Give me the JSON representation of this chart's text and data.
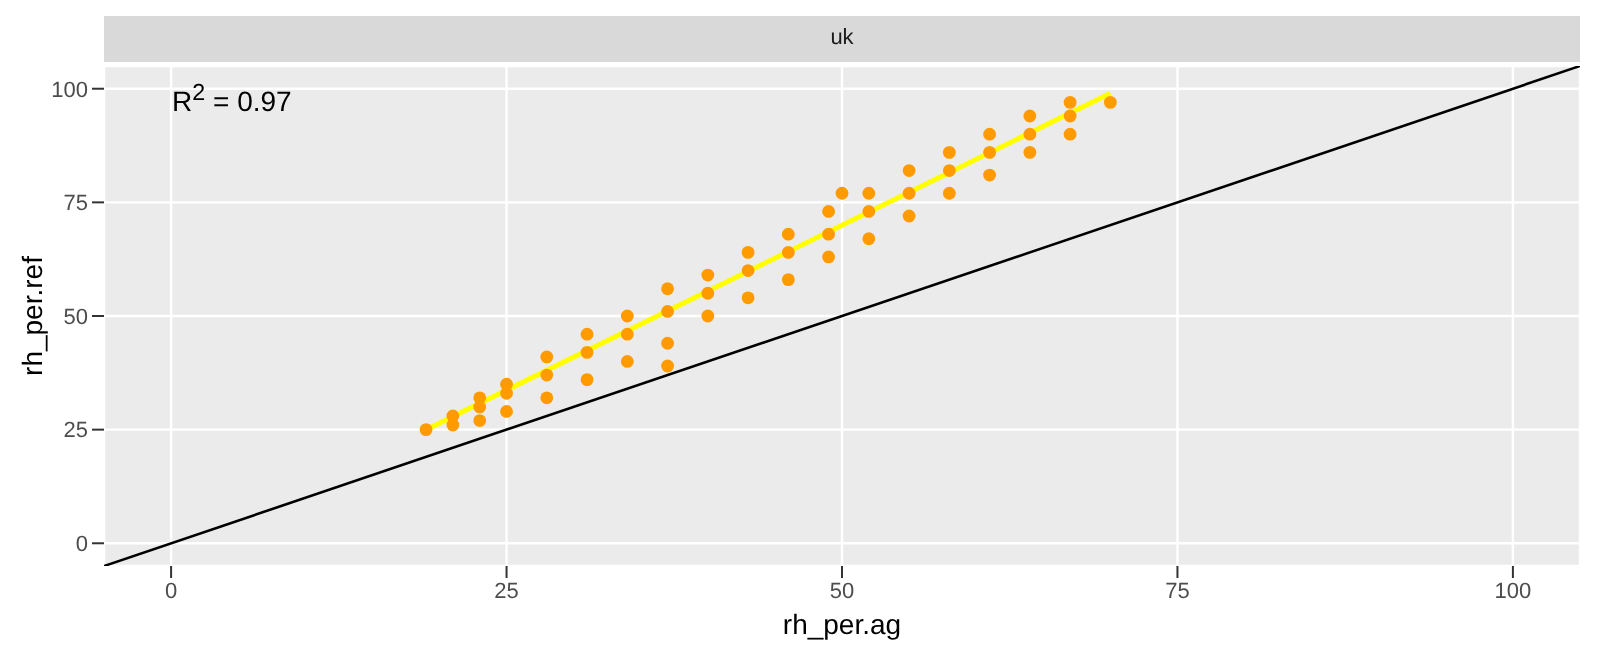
{
  "chart_data": {
    "type": "scatter",
    "title": "uk",
    "xlabel": "rh_per.ag",
    "ylabel": "rh_per.ref",
    "annotations": [
      "R$^{2}$ = 0.97"
    ],
    "xlim": [
      -5,
      105
    ],
    "ylim": [
      -5,
      105
    ],
    "xticks": [
      0,
      25,
      50,
      75,
      100
    ],
    "yticks": [
      0,
      25,
      50,
      75,
      100
    ],
    "grid": true,
    "series": [
      {
        "marker": "circle",
        "color": "#ff9a00",
        "x": [
          19,
          21,
          21,
          23,
          23,
          23,
          25,
          25,
          25,
          28,
          28,
          28,
          31,
          31,
          31,
          34,
          34,
          34,
          37,
          37,
          37,
          37,
          40,
          40,
          40,
          43,
          43,
          43,
          46,
          46,
          46,
          49,
          49,
          49,
          50,
          52,
          52,
          52,
          55,
          55,
          55,
          58,
          58,
          58,
          61,
          61,
          61,
          64,
          64,
          64,
          67,
          67,
          67,
          70
        ],
        "values": [
          25,
          26,
          28,
          27,
          30,
          32,
          29,
          33,
          35,
          32,
          37,
          41,
          36,
          42,
          46,
          40,
          46,
          50,
          39,
          44,
          51,
          56,
          50,
          55,
          59,
          54,
          60,
          64,
          58,
          64,
          68,
          63,
          68,
          73,
          77,
          67,
          73,
          77,
          72,
          77,
          82,
          77,
          82,
          86,
          81,
          86,
          90,
          86,
          90,
          94,
          90,
          94,
          97,
          97
        ]
      },
      {
        "type": "line",
        "marker": "none",
        "color": "#ffff00",
        "x": [
          19,
          70
        ],
        "values": [
          25,
          99
        ]
      },
      {
        "type": "line",
        "marker": "none",
        "color": "#000000",
        "x": [
          -5,
          105
        ],
        "values": [
          -5,
          105
        ]
      }
    ]
  }
}
